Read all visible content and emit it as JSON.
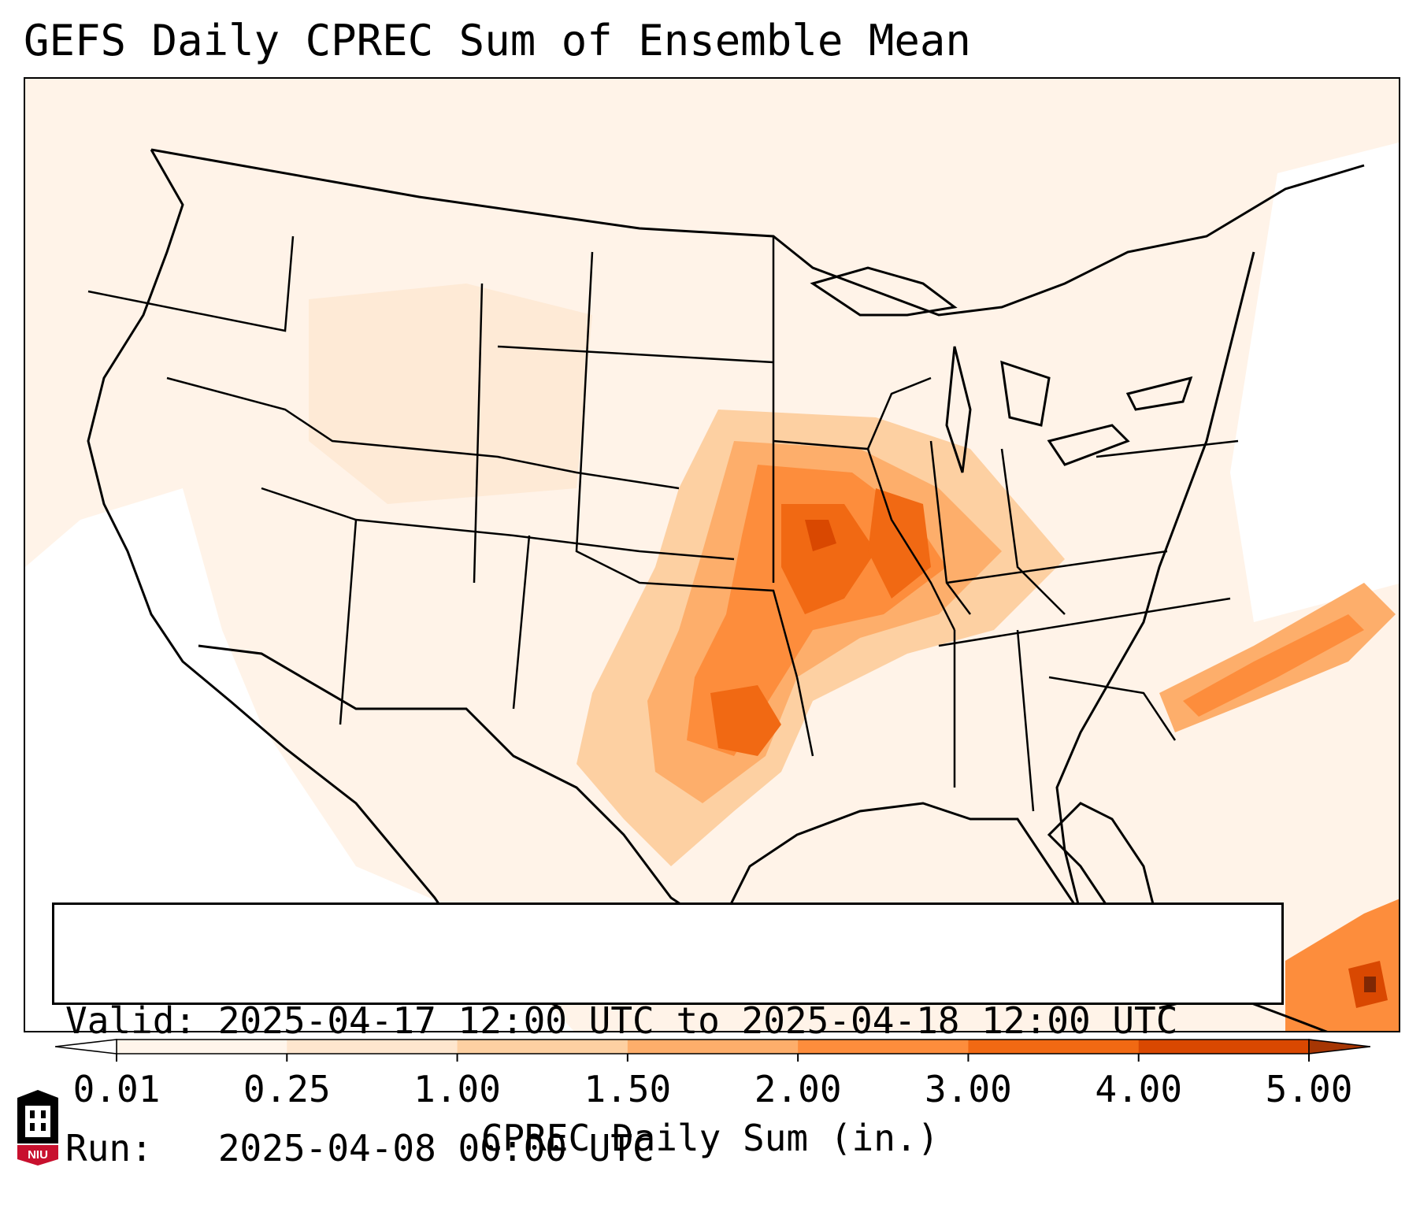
{
  "title": "GEFS Daily CPREC Sum of Ensemble Mean",
  "info": {
    "valid_line": "Valid: 2025-04-17 12:00 UTC to 2025-04-18 12:00 UTC",
    "run_line": "Run:   2025-04-08 00:00 UTC"
  },
  "colorbar": {
    "label": "CPREC Daily Sum (in.)",
    "ticks": [
      "0.01",
      "0.25",
      "1.00",
      "1.50",
      "2.00",
      "3.00",
      "4.00",
      "5.00"
    ],
    "colors": [
      "#fff5eb",
      "#fee6ce",
      "#fdd0a2",
      "#fdae6b",
      "#fd8d3c",
      "#f16913",
      "#d94801",
      "#a63603"
    ],
    "extend_min_color": "#ffffff",
    "extend_max_color": "#a63603"
  },
  "map": {
    "region": "Continental United States",
    "high_precip_areas": [
      "Missouri",
      "Arkansas",
      "Illinois",
      "Indiana",
      "Oklahoma",
      "Texas",
      "Kentucky",
      "Tennessee",
      "Atlantic off Carolinas",
      "Caribbean"
    ]
  },
  "logo": {
    "text": "NIU",
    "colors": {
      "primary": "#c8102e",
      "secondary": "#000000"
    }
  }
}
